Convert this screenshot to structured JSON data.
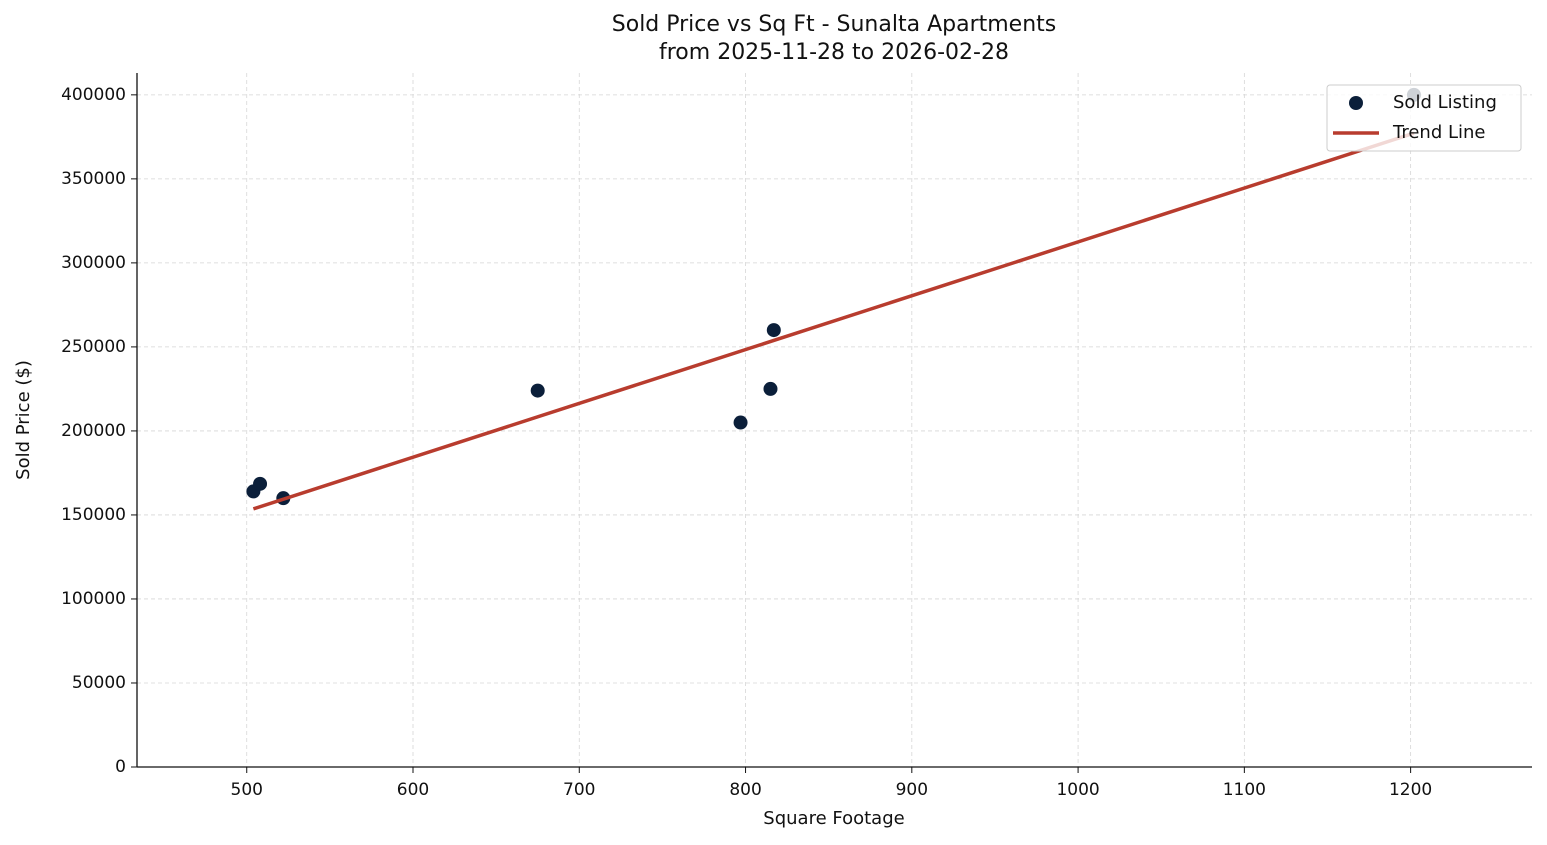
{
  "chart_data": {
    "type": "scatter",
    "title": "Sold Price vs Sq Ft - Sunalta Apartments",
    "subtitle": "from 2025-11-28 to 2026-02-28",
    "x_label": "Square Footage",
    "y_label": "Sold Price ($)",
    "xlim": [
      434,
      1273
    ],
    "ylim": [
      0,
      413000
    ],
    "xticks": [
      500,
      600,
      700,
      800,
      900,
      1000,
      1100,
      1200
    ],
    "yticks": [
      0,
      50000,
      100000,
      150000,
      200000,
      250000,
      300000,
      350000,
      400000
    ],
    "grid": true,
    "legend": "upper right",
    "series": [
      {
        "name": "Sold Listing",
        "type": "scatter",
        "color": "#0b1f3a",
        "x": [
          504,
          508,
          522,
          675,
          797,
          815,
          817,
          1202
        ],
        "values": [
          164000,
          168500,
          160000,
          224000,
          205000,
          225000,
          260000,
          400000
        ]
      },
      {
        "name": "Trend Line",
        "type": "line",
        "color": "#b83c2e",
        "x": [
          504,
          1202
        ],
        "values": [
          153600,
          377200
        ]
      }
    ]
  }
}
